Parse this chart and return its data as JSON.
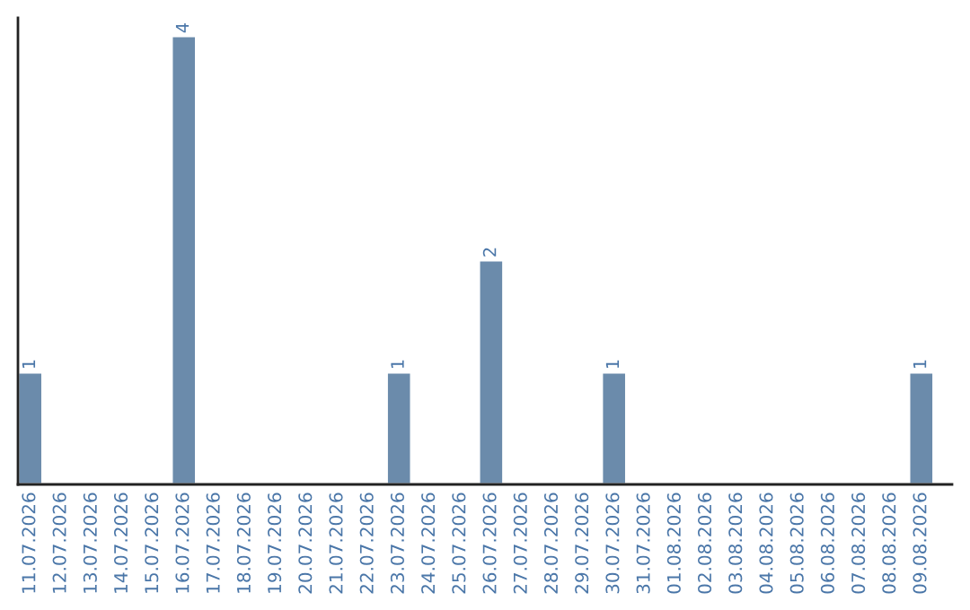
{
  "chart_data": {
    "type": "bar",
    "categories": [
      "11.07.2026",
      "12.07.2026",
      "13.07.2026",
      "14.07.2026",
      "15.07.2026",
      "16.07.2026",
      "17.07.2026",
      "18.07.2026",
      "19.07.2026",
      "20.07.2026",
      "21.07.2026",
      "22.07.2026",
      "23.07.2026",
      "24.07.2026",
      "25.07.2026",
      "26.07.2026",
      "27.07.2026",
      "28.07.2026",
      "29.07.2026",
      "30.07.2026",
      "31.07.2026",
      "01.08.2026",
      "02.08.2026",
      "03.08.2026",
      "04.08.2026",
      "05.08.2026",
      "06.08.2026",
      "07.08.2026",
      "08.08.2026",
      "09.08.2026"
    ],
    "values": [
      1,
      0,
      0,
      0,
      0,
      4,
      0,
      0,
      0,
      0,
      0,
      0,
      1,
      0,
      0,
      2,
      0,
      0,
      0,
      1,
      0,
      0,
      0,
      0,
      0,
      0,
      0,
      0,
      0,
      1
    ],
    "value_labels": [
      "1",
      null,
      null,
      null,
      null,
      "4",
      null,
      null,
      null,
      null,
      null,
      null,
      "1",
      null,
      null,
      "2",
      null,
      null,
      null,
      "1",
      null,
      null,
      null,
      null,
      null,
      null,
      null,
      null,
      null,
      "1"
    ],
    "color": "#6b8bab",
    "grid": false,
    "legend": false
  }
}
